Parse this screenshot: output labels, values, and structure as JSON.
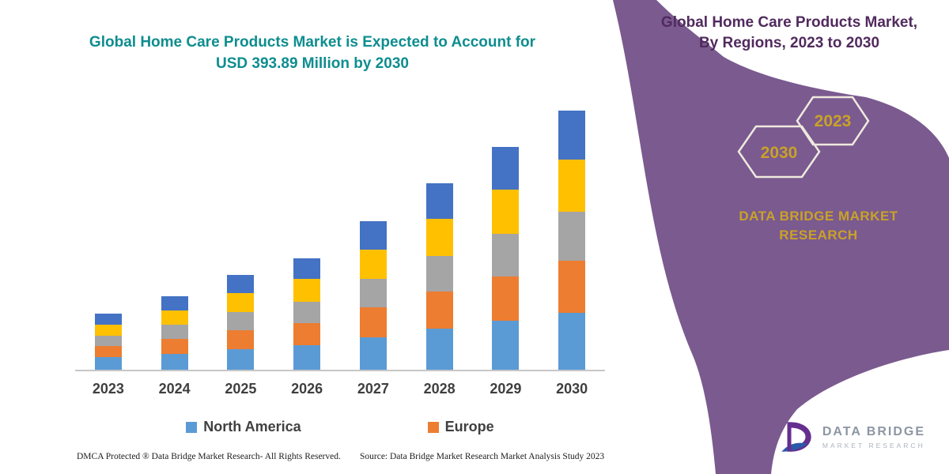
{
  "header": {
    "title_line1": "Global Home Care Products Market is Expected to Account for",
    "title_line2": "USD 393.89 Million by 2030"
  },
  "chart_data": {
    "type": "bar",
    "stacked": true,
    "title": "Global Home Care Products Market is Expected to Account for USD 393.89 Million by 2030",
    "unit": "USD Million",
    "categories": [
      "2023",
      "2024",
      "2025",
      "2026",
      "2027",
      "2028",
      "2029",
      "2030"
    ],
    "series": [
      {
        "name": "North America",
        "color": "#5B9BD5",
        "values": [
          18.7,
          24.6,
          31.7,
          37.4,
          49.7,
          62.3,
          74.6,
          86.7
        ]
      },
      {
        "name": "Europe",
        "color": "#ED7D31",
        "values": [
          17.0,
          22.4,
          28.8,
          34.0,
          45.2,
          56.6,
          67.8,
          78.8
        ]
      },
      {
        "name": "",
        "color": "#A5A5A5",
        "values": [
          16.2,
          21.3,
          27.4,
          32.3,
          42.9,
          53.8,
          64.4,
          74.8
        ]
      },
      {
        "name": "",
        "color": "#FFC000",
        "values": [
          17.0,
          22.4,
          28.8,
          34.0,
          45.2,
          56.6,
          67.8,
          78.8
        ]
      },
      {
        "name": "",
        "color": "#4472C4",
        "values": [
          16.2,
          21.3,
          27.4,
          32.3,
          42.9,
          53.8,
          64.4,
          74.8
        ]
      }
    ],
    "totals": [
      85.1,
      112.0,
      144.1,
      170.0,
      225.9,
      283.1,
      339.0,
      393.89
    ],
    "ylim": [
      0,
      400
    ],
    "grid": false,
    "y_axis_visible": false,
    "legend_position": "bottom",
    "legend": [
      {
        "label": "North America",
        "color": "#5B9BD5"
      },
      {
        "label": "Europe",
        "color": "#ED7D31"
      }
    ]
  },
  "side_panel": {
    "title_line1": "Global Home Care Products Market,",
    "title_line2": "By Regions, 2023 to 2030",
    "hex_back_year": "2023",
    "hex_front_year": "2030",
    "brand_line1": "DATA BRIDGE MARKET",
    "brand_line2": "RESEARCH"
  },
  "footer": {
    "dmca": "DMCA Protected ® Data Bridge Market Research-  All Rights Reserved.",
    "source": "Source: Data Bridge Market Research  Market Analysis Study 2023"
  },
  "logo": {
    "line1": "DATA BRIDGE",
    "line2": "MARKET RESEARCH"
  },
  "colors": {
    "panel_purple": "#7A5A8F",
    "title_teal": "#0E8D8F",
    "panel_title_purple": "#512A5E",
    "gold": "#C9A227",
    "hex_outline": "#EFE9DE",
    "axis_line": "#C6C6C6"
  }
}
